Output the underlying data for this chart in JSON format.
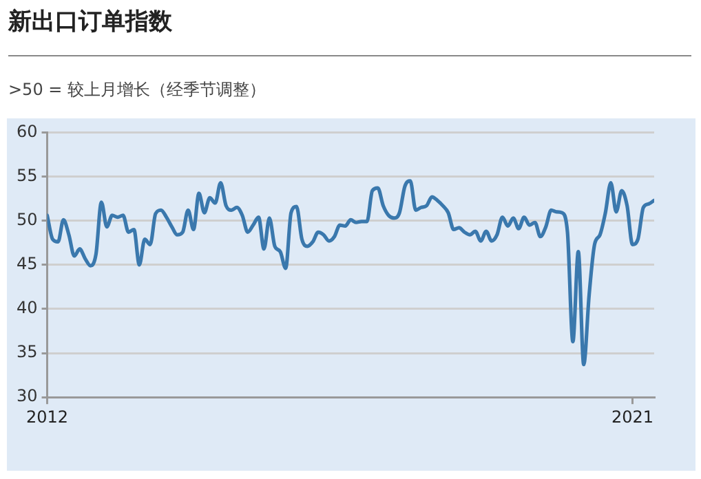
{
  "chart_data": {
    "type": "line",
    "title": "新出口订单指数",
    "subtitle": ">50 = 较上月增长（经季节调整）",
    "x": [
      "2012-01",
      "2012-02",
      "2012-03",
      "2012-04",
      "2012-05",
      "2012-06",
      "2012-07",
      "2012-08",
      "2012-09",
      "2012-10",
      "2012-11",
      "2012-12",
      "2013-01",
      "2013-02",
      "2013-03",
      "2013-04",
      "2013-05",
      "2013-06",
      "2013-07",
      "2013-08",
      "2013-09",
      "2013-10",
      "2013-11",
      "2013-12",
      "2014-01",
      "2014-02",
      "2014-03",
      "2014-04",
      "2014-05",
      "2014-06",
      "2014-07",
      "2014-08",
      "2014-09",
      "2014-10",
      "2014-11",
      "2014-12",
      "2015-01",
      "2015-02",
      "2015-03",
      "2015-04",
      "2015-05",
      "2015-06",
      "2015-07",
      "2015-08",
      "2015-09",
      "2015-10",
      "2015-11",
      "2015-12",
      "2016-01",
      "2016-02",
      "2016-03",
      "2016-04",
      "2016-05",
      "2016-06",
      "2016-07",
      "2016-08",
      "2016-09",
      "2016-10",
      "2016-11",
      "2016-12",
      "2017-01",
      "2017-02",
      "2017-03",
      "2017-04",
      "2017-05",
      "2017-06",
      "2017-07",
      "2017-08",
      "2017-09",
      "2017-10",
      "2017-11",
      "2017-12",
      "2018-01",
      "2018-02",
      "2018-03",
      "2018-04",
      "2018-05",
      "2018-06",
      "2018-07",
      "2018-08",
      "2018-09",
      "2018-10",
      "2018-11",
      "2018-12",
      "2019-01",
      "2019-02",
      "2019-03",
      "2019-04",
      "2019-05",
      "2019-06",
      "2019-07",
      "2019-08",
      "2019-09",
      "2019-10",
      "2019-11",
      "2019-12",
      "2020-01",
      "2020-02",
      "2020-03",
      "2020-04",
      "2020-05",
      "2020-06",
      "2020-07",
      "2020-08",
      "2020-09",
      "2020-10",
      "2020-11",
      "2020-12",
      "2021-01",
      "2021-02",
      "2021-03",
      "2021-04",
      "2021-05"
    ],
    "series": [
      {
        "color": "#3a78ad",
        "values": [
          50.6,
          47.9,
          47.6,
          50.1,
          48.4,
          46.0,
          46.8,
          45.7,
          44.9,
          46.2,
          52.1,
          49.3,
          50.6,
          50.4,
          50.6,
          48.7,
          49.0,
          45.0,
          47.9,
          47.3,
          50.8,
          51.2,
          50.4,
          49.3,
          48.4,
          48.7,
          51.2,
          49.0,
          53.1,
          50.9,
          52.6,
          52.0,
          54.3,
          51.7,
          51.2,
          51.5,
          50.6,
          48.7,
          49.5,
          50.4,
          46.8,
          50.3,
          47.1,
          46.5,
          44.6,
          50.9,
          51.6,
          47.9,
          47.1,
          47.6,
          48.7,
          48.4,
          47.7,
          48.2,
          49.5,
          49.4,
          50.1,
          49.8,
          49.9,
          49.9,
          53.4,
          53.7,
          51.7,
          50.6,
          50.3,
          50.9,
          53.9,
          54.5,
          51.2,
          51.5,
          51.7,
          52.7,
          52.3,
          51.7,
          50.9,
          49.0,
          49.2,
          48.7,
          48.4,
          48.8,
          47.7,
          48.8,
          47.7,
          48.4,
          50.4,
          49.4,
          50.3,
          49.1,
          50.4,
          49.5,
          49.8,
          48.2,
          49.3,
          51.2,
          51.0,
          50.9,
          48.7,
          36.3,
          46.5,
          33.7,
          41.6,
          47.3,
          48.4,
          50.9,
          54.3,
          51.0,
          53.4,
          51.7,
          47.3,
          47.9,
          51.5,
          51.9,
          52.3
        ]
      }
    ],
    "xlim": [
      "2012-01",
      "2021-05"
    ],
    "xticks": [
      {
        "value": "2012-01",
        "label": "2012"
      },
      {
        "value": "2021-01",
        "label": "2021"
      }
    ],
    "ylim": [
      30,
      60
    ],
    "yticks": [
      30,
      35,
      40,
      45,
      50,
      55,
      60
    ],
    "grid": "y",
    "legend": false,
    "marker": "none",
    "line_style": "solid"
  }
}
